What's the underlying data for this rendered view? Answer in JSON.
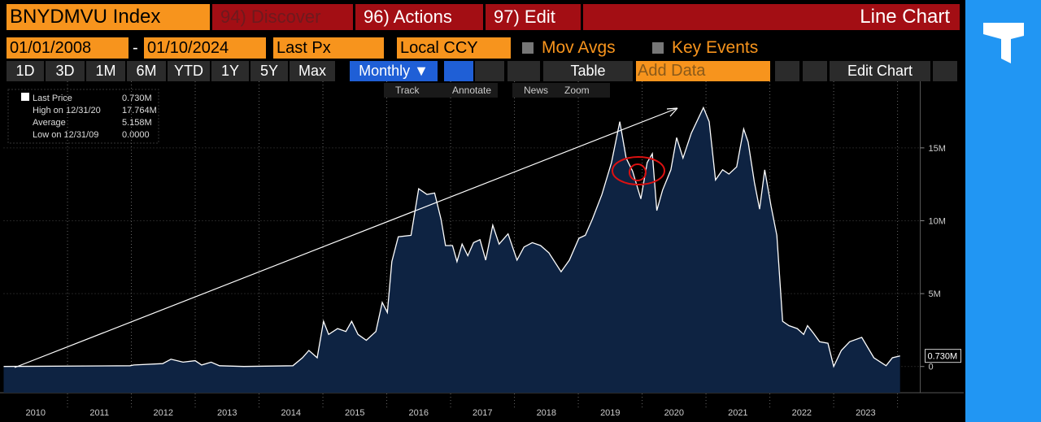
{
  "toolbar": {
    "ticker": "BNYDMVU Index",
    "discover": "94) Discover",
    "actions": "96) Actions",
    "edit": "97) Edit",
    "chart_kind": "Line Chart"
  },
  "controls": {
    "start": "01/01/2008",
    "dash": "-",
    "end": "01/10/2024",
    "field": "Last Px",
    "currency": "Local CCY",
    "mov_avgs": "Mov Avgs",
    "key_events": "Key Events"
  },
  "periods": [
    "1D",
    "3D",
    "1M",
    "6M",
    "YTD",
    "1Y",
    "5Y",
    "Max"
  ],
  "frequency": "Monthly ▼",
  "table": "Table",
  "add_data": "Add Data",
  "edit_chart": "Edit Chart",
  "tools": [
    "Track",
    "Annotate",
    "News",
    "Zoom"
  ],
  "legend": [
    {
      "label": "Last Price",
      "value": "0.730M"
    },
    {
      "label": "High on 12/31/20",
      "value": "17.764M"
    },
    {
      "label": "Average",
      "value": "5.158M"
    },
    {
      "label": "Low on 12/31/09",
      "value": "0.0000"
    }
  ],
  "chart_data": {
    "type": "area",
    "color": "#ffffff",
    "fill": "#0e2342",
    "x": [
      2010.0,
      2011.98,
      2012.04,
      2012.49,
      2012.62,
      2012.81,
      2013.0,
      2013.1,
      2013.25,
      2013.38,
      2013.76,
      2014.53,
      2014.68,
      2014.78,
      2014.91,
      2015.01,
      2015.09,
      2015.23,
      2015.36,
      2015.45,
      2015.55,
      2015.68,
      2015.83,
      2015.93,
      2016.01,
      2016.08,
      2016.18,
      2016.38,
      2016.5,
      2016.63,
      2016.75,
      2016.85,
      2016.92,
      2017.03,
      2017.1,
      2017.18,
      2017.27,
      2017.36,
      2017.46,
      2017.55,
      2017.66,
      2017.76,
      2017.9,
      2018.04,
      2018.15,
      2018.28,
      2018.41,
      2018.54,
      2018.73,
      2018.86,
      2019.01,
      2019.11,
      2019.22,
      2019.37,
      2019.52,
      2019.65,
      2019.75,
      2019.85,
      2019.98,
      2020.08,
      2020.16,
      2020.23,
      2020.32,
      2020.45,
      2020.54,
      2020.64,
      2020.77,
      2020.96,
      2021.05,
      2021.15,
      2021.26,
      2021.36,
      2021.48,
      2021.59,
      2021.66,
      2021.76,
      2021.84,
      2021.92,
      2022.02,
      2022.11,
      2022.2,
      2022.3,
      2022.43,
      2022.53,
      2022.59,
      2022.68,
      2022.78,
      2022.91,
      2023.0,
      2023.12,
      2023.25,
      2023.44,
      2023.63,
      2023.82,
      2023.92,
      2024.04
    ],
    "values": [
      0,
      0.05,
      0.1,
      0.2,
      0.5,
      0.3,
      0.4,
      0.1,
      0.3,
      0.05,
      0,
      0.05,
      0.6,
      1.1,
      0.6,
      3.1,
      2.2,
      2.6,
      2.4,
      3.1,
      2.2,
      1.8,
      2.4,
      4.4,
      3.7,
      7.2,
      8.9,
      9.0,
      12.2,
      11.8,
      11.9,
      10.1,
      8.3,
      8.3,
      7.2,
      8.4,
      7.6,
      8.5,
      8.7,
      7.3,
      9.7,
      8.4,
      9.1,
      7.3,
      8.2,
      8.5,
      8.3,
      7.8,
      6.5,
      7.3,
      8.8,
      9.0,
      10.1,
      11.8,
      14.0,
      16.8,
      14.3,
      13.4,
      11.5,
      14.0,
      14.6,
      10.7,
      12.1,
      13.5,
      15.7,
      14.3,
      16.0,
      17.764,
      16.8,
      12.8,
      13.5,
      13.2,
      13.7,
      16.3,
      15.4,
      12.6,
      10.8,
      13.5,
      11.0,
      9.0,
      3.1,
      2.8,
      2.6,
      2.2,
      2.8,
      2.3,
      1.7,
      1.6,
      0,
      1.1,
      1.7,
      2.0,
      0.6,
      0.05,
      0.6,
      0.73
    ],
    "last_label": "0.730M",
    "xlim": [
      2010,
      2024.33
    ],
    "ylim": [
      -1.8,
      19.4
    ],
    "yticks": [
      0,
      {
        "value": 5,
        "label": "5M"
      },
      {
        "value": 10,
        "label": "10M"
      },
      {
        "value": 15,
        "label": "15M"
      }
    ],
    "year_labels": [
      "2010",
      "2011",
      "2012",
      "2013",
      "2014",
      "2015",
      "2016",
      "2017",
      "2018",
      "2019",
      "2020",
      "2021",
      "2022",
      "2023"
    ],
    "year_starts": [
      2010,
      2011,
      2012,
      2013,
      2014,
      2015,
      2016,
      2017,
      2018,
      2019,
      2020,
      2021,
      2022,
      2023
    ],
    "xgrid": [
      2011,
      2012,
      2013,
      2014,
      2015,
      2016,
      2017,
      2018,
      2019,
      2020,
      2021,
      2022,
      2023,
      2024
    ],
    "grid": true
  }
}
